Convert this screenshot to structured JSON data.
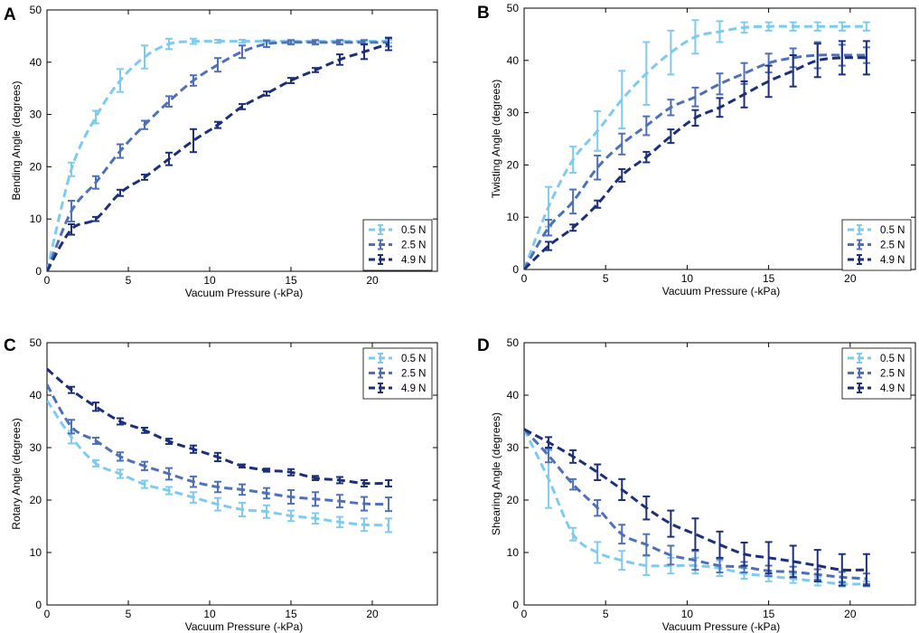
{
  "colors": {
    "0.5 N": "#7ecbef",
    "2.5 N": "#4d70b8",
    "4.9 N": "#1c2f7a"
  },
  "chart_data": [
    {
      "panel": "A",
      "type": "line",
      "xlabel": "Vacuum Pressure (-kPa)",
      "ylabel": "Bending Angle (degrees)",
      "xlim": [
        0,
        24
      ],
      "ylim": [
        0,
        50
      ],
      "xticks": [
        0,
        5,
        10,
        15,
        20
      ],
      "yticks": [
        0,
        10,
        20,
        30,
        40,
        50
      ],
      "legend_position": "bottom-right",
      "x": [
        0,
        1.5,
        3,
        4.5,
        6,
        7.5,
        9,
        10.5,
        12,
        13.5,
        15,
        16.5,
        18,
        19.5,
        21
      ],
      "series": [
        {
          "name": "0.5 N",
          "values": [
            0,
            19.5,
            29.5,
            36.5,
            41,
            43.5,
            44,
            44,
            44,
            44,
            44,
            44,
            44,
            44,
            44
          ],
          "errors": [
            0,
            1.3,
            1.2,
            2.2,
            2.2,
            1.0,
            0.5,
            0.3,
            0.3,
            0.3,
            0.3,
            0.3,
            0.3,
            0.3,
            0.3
          ]
        },
        {
          "name": "2.5 N",
          "values": [
            0,
            11.5,
            17,
            23,
            28,
            32.5,
            36.5,
            39.5,
            42,
            43.5,
            43.8,
            43.8,
            43.8,
            43.8,
            43.8
          ],
          "errors": [
            0,
            2.0,
            1.2,
            1.3,
            0.8,
            1.0,
            1.0,
            1.3,
            1.2,
            0.6,
            0.4,
            0.4,
            0.4,
            0.4,
            0.8
          ]
        },
        {
          "name": "4.9 N",
          "values": [
            0,
            8,
            10,
            15,
            18,
            21.5,
            25,
            28,
            31.5,
            34,
            36.5,
            38.5,
            40.5,
            42,
            43.5
          ],
          "errors": [
            0,
            1.0,
            0.4,
            0.6,
            0.5,
            1.2,
            2.2,
            0.6,
            0.5,
            0.4,
            0.5,
            0.4,
            1.0,
            1.4,
            1.2
          ]
        }
      ]
    },
    {
      "panel": "B",
      "type": "line",
      "xlabel": "Vacuum Pressure (-kPa)",
      "ylabel": "Twisting Angle (degrees)",
      "xlim": [
        0,
        24
      ],
      "ylim": [
        0,
        50
      ],
      "xticks": [
        0,
        5,
        10,
        15,
        20
      ],
      "yticks": [
        0,
        10,
        20,
        30,
        40,
        50
      ],
      "legend_position": "bottom-right",
      "x": [
        0,
        1.5,
        3,
        4.5,
        6,
        7.5,
        9,
        10.5,
        12,
        13.5,
        15,
        16.5,
        18,
        19.5,
        21
      ],
      "series": [
        {
          "name": "0.5 N",
          "values": [
            0,
            12,
            21,
            26.5,
            32.5,
            37.5,
            41.5,
            44.5,
            45.5,
            46.3,
            46.5,
            46.5,
            46.5,
            46.5,
            46.5
          ],
          "errors": [
            0,
            3.8,
            2.5,
            3.8,
            5.5,
            6.0,
            4.2,
            3.2,
            2.0,
            1.0,
            0.8,
            0.8,
            0.8,
            0.8,
            0.8
          ]
        },
        {
          "name": "2.5 N",
          "values": [
            0,
            8,
            13,
            19.5,
            24,
            27.5,
            31,
            33,
            35.5,
            37.5,
            39.5,
            40.5,
            41,
            41,
            41
          ],
          "errors": [
            0,
            1.5,
            2.3,
            2.3,
            2.0,
            1.8,
            1.5,
            1.8,
            2.0,
            2.0,
            1.8,
            1.8,
            2.5,
            2.0,
            1.5
          ]
        },
        {
          "name": "4.9 N",
          "values": [
            0,
            4.5,
            8,
            12.5,
            18,
            21.5,
            25.5,
            29,
            31,
            33.5,
            36,
            38,
            40,
            40.5,
            40.5
          ],
          "errors": [
            0,
            0.8,
            0.6,
            0.7,
            1.2,
            1.0,
            1.3,
            1.5,
            1.8,
            2.5,
            3.0,
            3.0,
            3.2,
            3.2,
            3.2
          ]
        }
      ]
    },
    {
      "panel": "C",
      "type": "line",
      "xlabel": "Vacuum Pressure (-kPa)",
      "ylabel": "Rotary Angle (degrees)",
      "xlim": [
        0,
        24
      ],
      "ylim": [
        0,
        50
      ],
      "xticks": [
        0,
        5,
        10,
        15,
        20
      ],
      "yticks": [
        0,
        10,
        20,
        30,
        40,
        50
      ],
      "legend_position": "top-right",
      "x": [
        0,
        1.5,
        3,
        4.5,
        6,
        7.5,
        9,
        10.5,
        12,
        13.5,
        15,
        16.5,
        18,
        19.5,
        21
      ],
      "series": [
        {
          "name": "0.5 N",
          "values": [
            39,
            32,
            27,
            25,
            23,
            21.8,
            20.5,
            19.2,
            18.2,
            17.8,
            17,
            16.5,
            15.8,
            15.3,
            15.2
          ],
          "errors": [
            0,
            1.2,
            0.6,
            0.8,
            0.7,
            0.7,
            1.0,
            1.2,
            1.3,
            1.2,
            1.0,
            1.0,
            1.0,
            1.2,
            1.3
          ]
        },
        {
          "name": "2.5 N",
          "values": [
            42,
            34,
            31.3,
            28.3,
            26.5,
            25,
            23.5,
            22.5,
            22,
            21.3,
            20.6,
            20.2,
            19.8,
            19.3,
            19.2
          ],
          "errors": [
            0,
            1.3,
            0.6,
            0.8,
            0.8,
            1.1,
            1.0,
            1.0,
            1.0,
            1.0,
            1.3,
            1.3,
            1.2,
            1.3,
            1.3
          ]
        },
        {
          "name": "4.9 N",
          "values": [
            45,
            41,
            37.8,
            35,
            33.3,
            31.2,
            29.7,
            28.2,
            26.5,
            25.7,
            25.3,
            24.2,
            23.8,
            23.2,
            23.2
          ],
          "errors": [
            0,
            0.6,
            0.8,
            0.6,
            0.5,
            0.5,
            0.7,
            0.8,
            0.3,
            0.3,
            0.6,
            0.4,
            0.6,
            0.6,
            0.6
          ]
        }
      ]
    },
    {
      "panel": "D",
      "type": "line",
      "xlabel": "Vacuum Pressure (-kPa)",
      "ylabel": "Shearing Angle (degrees)",
      "xlim": [
        0,
        24
      ],
      "ylim": [
        0,
        50
      ],
      "xticks": [
        0,
        5,
        10,
        15,
        20
      ],
      "yticks": [
        0,
        10,
        20,
        30,
        40,
        50
      ],
      "legend_position": "top-right",
      "x": [
        0,
        1.5,
        3,
        4.5,
        6,
        7.5,
        9,
        10.5,
        12,
        13.5,
        15,
        16.5,
        18,
        19.5,
        21
      ],
      "series": [
        {
          "name": "0.5 N",
          "values": [
            33.5,
            24,
            13.5,
            10,
            8.5,
            7.5,
            7.5,
            7.5,
            7,
            6,
            5.5,
            5,
            4.5,
            4,
            4
          ],
          "errors": [
            0,
            5.5,
            1.2,
            2.0,
            1.8,
            1.8,
            1.5,
            1.5,
            1.5,
            1.0,
            1.0,
            0.8,
            0.8,
            0.5,
            0.5
          ]
        },
        {
          "name": "2.5 N",
          "values": [
            33.5,
            28.5,
            23,
            18.5,
            13.5,
            11.5,
            9.5,
            8.5,
            7.5,
            7.2,
            6.5,
            6.3,
            5.8,
            5.3,
            5.0
          ],
          "errors": [
            0,
            1.3,
            1.0,
            1.5,
            1.8,
            2.0,
            1.8,
            1.8,
            1.3,
            1.0,
            1.0,
            1.0,
            1.0,
            1.0,
            1.0
          ]
        },
        {
          "name": "4.9 N",
          "values": [
            33.5,
            31,
            28.3,
            25.3,
            22,
            18.5,
            15.5,
            13.5,
            11.5,
            9.7,
            9,
            8.3,
            7.5,
            6.7,
            6.7
          ],
          "errors": [
            0,
            1.0,
            1.2,
            1.5,
            2.0,
            2.2,
            2.5,
            3.0,
            2.5,
            2.2,
            3.0,
            3.0,
            3.0,
            3.0,
            3.0
          ]
        }
      ]
    }
  ]
}
